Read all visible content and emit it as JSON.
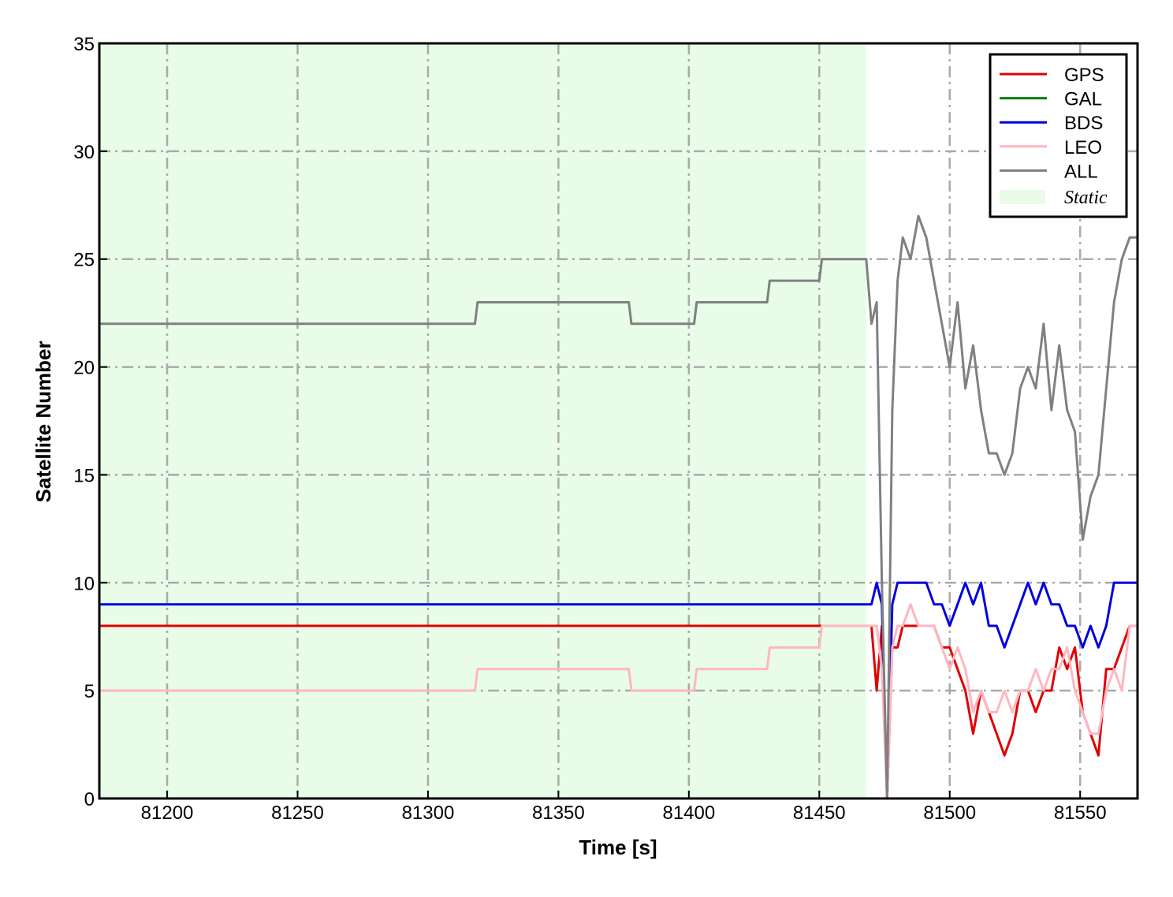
{
  "chart_data": {
    "type": "line",
    "xlabel": "Time [s]",
    "ylabel": "Satellite Number",
    "x": [
      81174,
      81318,
      81319,
      81377,
      81378,
      81402,
      81403,
      81430,
      81431,
      81450,
      81451,
      81468,
      81470,
      81472,
      81474,
      81476,
      81478,
      81480,
      81482,
      81485,
      81488,
      81491,
      81494,
      81497,
      81500,
      81503,
      81506,
      81509,
      81512,
      81515,
      81518,
      81521,
      81524,
      81527,
      81530,
      81533,
      81536,
      81539,
      81542,
      81545,
      81548,
      81551,
      81554,
      81557,
      81560,
      81563,
      81566,
      81569,
      81572
    ],
    "series": [
      {
        "name": "GPS",
        "color": "#e00000",
        "values": [
          8,
          8,
          8,
          8,
          8,
          8,
          8,
          8,
          8,
          8,
          8,
          8,
          8,
          5,
          8,
          0,
          7,
          7,
          8,
          8,
          8,
          8,
          8,
          7,
          7,
          6,
          5,
          3,
          5,
          4,
          3,
          2,
          3,
          5,
          5,
          4,
          5,
          5,
          7,
          6,
          7,
          4,
          3,
          2,
          6,
          6,
          7,
          8,
          8
        ]
      },
      {
        "name": "GAL",
        "color": "#007f00",
        "values": [
          0,
          0,
          0,
          0,
          0,
          0,
          0,
          0,
          0,
          0,
          0,
          0,
          0,
          0,
          0,
          0,
          0,
          0,
          0,
          0,
          0,
          0,
          0,
          0,
          0,
          0,
          0,
          0,
          0,
          0,
          0,
          0,
          0,
          0,
          0,
          0,
          0,
          0,
          0,
          0,
          0,
          0,
          0,
          0,
          0,
          0,
          0,
          0,
          0
        ]
      },
      {
        "name": "BDS",
        "color": "#0000dd",
        "values": [
          9,
          9,
          9,
          9,
          9,
          9,
          9,
          9,
          9,
          9,
          9,
          9,
          9,
          10,
          9,
          0,
          9,
          10,
          10,
          10,
          10,
          10,
          9,
          9,
          8,
          9,
          10,
          9,
          10,
          8,
          8,
          7,
          8,
          9,
          10,
          9,
          10,
          9,
          9,
          8,
          8,
          7,
          8,
          7,
          8,
          10,
          10,
          10,
          10
        ]
      },
      {
        "name": "LEO",
        "color": "#ffb6c1",
        "values": [
          5,
          5,
          6,
          6,
          5,
          5,
          6,
          6,
          7,
          7,
          8,
          8,
          8,
          8,
          6,
          0,
          7,
          8,
          8,
          9,
          8,
          8,
          8,
          7,
          6,
          7,
          6,
          4,
          5,
          4,
          4,
          5,
          4,
          5,
          5,
          6,
          5,
          6,
          6,
          7,
          5,
          4,
          3,
          3,
          5,
          6,
          5,
          8,
          8
        ]
      },
      {
        "name": "ALL",
        "color": "#808080",
        "values": [
          22,
          22,
          23,
          23,
          22,
          22,
          23,
          23,
          24,
          24,
          25,
          25,
          22,
          23,
          10,
          0,
          18,
          24,
          26,
          25,
          27,
          26,
          24,
          22,
          20,
          23,
          19,
          21,
          18,
          16,
          16,
          15,
          16,
          19,
          20,
          19,
          22,
          18,
          21,
          18,
          17,
          12,
          14,
          15,
          19,
          23,
          25,
          26,
          26
        ]
      }
    ],
    "span": {
      "label": "Static",
      "xmin": 81174,
      "xmax": 81468,
      "color": "#e8fce8"
    },
    "xlim": [
      81174,
      81572
    ],
    "xticks": [
      81200,
      81250,
      81300,
      81350,
      81400,
      81450,
      81500,
      81550
    ],
    "ylim": [
      0,
      35
    ],
    "yticks": [
      0,
      5,
      10,
      15,
      20,
      25,
      30,
      35
    ],
    "grid": true,
    "legend": "upper right"
  }
}
